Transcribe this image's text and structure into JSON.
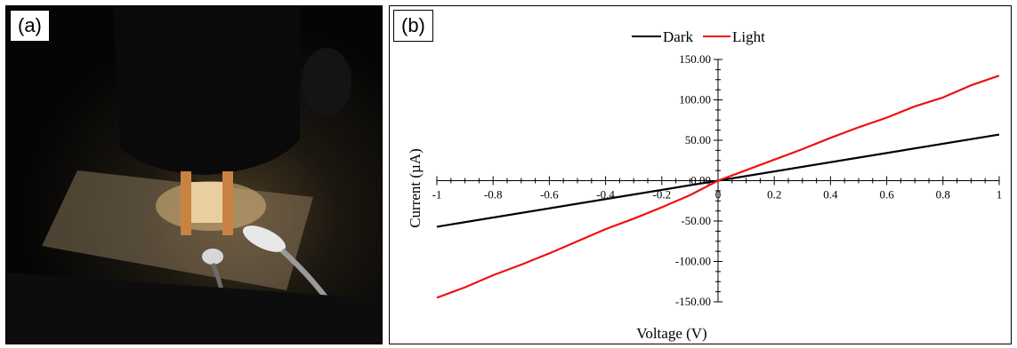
{
  "panel_a": {
    "label": "(a)"
  },
  "panel_b": {
    "label": "(b)"
  },
  "chart_data": {
    "type": "line",
    "title": "",
    "xlabel": "Voltage (V)",
    "ylabel": "Current (µA)",
    "xlim": [
      -1,
      1
    ],
    "ylim": [
      -150,
      150
    ],
    "x_ticks": [
      "-1",
      "-0.8",
      "-0.6",
      "-0.4",
      "-0.2",
      "0",
      "0.2",
      "0.4",
      "0.6",
      "0.8",
      "1"
    ],
    "y_ticks": [
      "-150.00",
      "-100.00",
      "-50.00",
      "0.00",
      "50.00",
      "100.00",
      "150.00"
    ],
    "legend": {
      "position": "top-center"
    },
    "colors": {
      "dark": "#000000",
      "light": "#ee1111"
    },
    "series": [
      {
        "name": "Dark",
        "color": "#000000",
        "x": [
          -1,
          1
        ],
        "y": [
          -57,
          57
        ]
      },
      {
        "name": "Light",
        "color": "#ee1111",
        "x": [
          -1,
          -0.9,
          -0.8,
          -0.7,
          -0.6,
          -0.5,
          -0.4,
          -0.3,
          -0.2,
          -0.1,
          0,
          0.1,
          0.2,
          0.3,
          0.4,
          0.5,
          0.6,
          0.7,
          0.8,
          0.9,
          1
        ],
        "y": [
          -145,
          -132,
          -117,
          -104,
          -90,
          -75,
          -60,
          -47,
          -33,
          -18,
          0,
          13,
          26,
          39,
          53,
          66,
          78,
          92,
          103,
          118,
          130
        ]
      }
    ]
  }
}
